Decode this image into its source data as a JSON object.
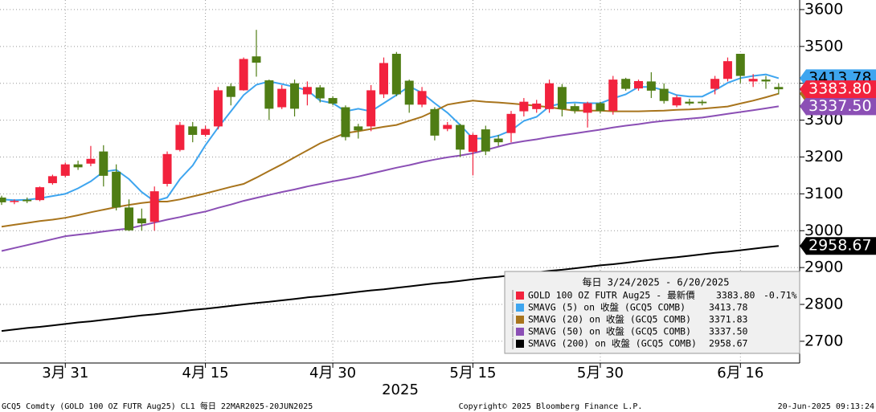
{
  "chart_data": {
    "type": "candlestick",
    "categories": [
      null,
      null,
      null,
      null,
      null,
      "3月 31",
      null,
      null,
      null,
      null,
      null,
      null,
      null,
      null,
      null,
      null,
      "4月 15",
      null,
      null,
      null,
      null,
      null,
      null,
      null,
      null,
      null,
      "4月 30",
      null,
      null,
      null,
      null,
      null,
      null,
      null,
      null,
      null,
      null,
      "5月 15",
      null,
      null,
      null,
      null,
      null,
      null,
      null,
      null,
      null,
      "5月 30",
      null,
      null,
      null,
      null,
      null,
      null,
      null,
      null,
      null,
      null,
      "6月 16",
      null,
      null,
      null
    ],
    "x_label": "2025",
    "name": "GOLD 100 OZ FUTR Aug25 - 最新價",
    "last_label": "3383.80",
    "change_label": "-0.71%",
    "open": [
      3090,
      3079,
      3084,
      3083,
      3129,
      3149,
      3180,
      3182,
      3215,
      3160,
      3063,
      3033,
      3024,
      3127,
      3219,
      3283,
      3260,
      3283,
      3392,
      3381,
      3473,
      3408,
      3335,
      3400,
      3370,
      3389,
      3360,
      3335,
      3283,
      3283,
      3370,
      3480,
      3407,
      3342,
      3330,
      3276,
      3287,
      3214,
      3275,
      3250,
      3265,
      3324,
      3330,
      3330,
      3390,
      3338,
      3320,
      3346,
      3325,
      3412,
      3386,
      3405,
      3385,
      3340,
      3350,
      3350,
      3385,
      3412,
      3480,
      3405,
      3410,
      3390
    ],
    "high": [
      3095,
      3085,
      3090,
      3120,
      3152,
      3185,
      3190,
      3230,
      3232,
      3180,
      3085,
      3060,
      3120,
      3215,
      3295,
      3295,
      3285,
      3390,
      3400,
      3470,
      3545,
      3410,
      3395,
      3410,
      3405,
      3395,
      3365,
      3340,
      3290,
      3395,
      3470,
      3485,
      3410,
      3390,
      3335,
      3295,
      3290,
      3265,
      3285,
      3260,
      3325,
      3360,
      3355,
      3410,
      3398,
      3345,
      3350,
      3350,
      3420,
      3415,
      3410,
      3430,
      3400,
      3368,
      3358,
      3355,
      3420,
      3470,
      3480,
      3425,
      3420,
      3400
    ],
    "low": [
      3070,
      3072,
      3075,
      3080,
      3125,
      3145,
      3165,
      3175,
      3120,
      3055,
      2999,
      3000,
      3000,
      3120,
      3215,
      3240,
      3255,
      3275,
      3340,
      3380,
      3418,
      3300,
      3330,
      3310,
      3340,
      3348,
      3340,
      3245,
      3250,
      3270,
      3360,
      3365,
      3320,
      3335,
      3245,
      3270,
      3200,
      3150,
      3205,
      3230,
      3240,
      3310,
      3320,
      3320,
      3310,
      3318,
      3280,
      3318,
      3315,
      3380,
      3380,
      3360,
      3345,
      3335,
      3340,
      3340,
      3370,
      3405,
      3400,
      3390,
      3385,
      3370
    ],
    "close": [
      3077,
      3081,
      3080,
      3118,
      3148,
      3180,
      3172,
      3195,
      3149,
      3063,
      3001,
      3020,
      3107,
      3208,
      3287,
      3260,
      3276,
      3381,
      3363,
      3466,
      3456,
      3331,
      3385,
      3331,
      3390,
      3359,
      3345,
      3254,
      3272,
      3381,
      3455,
      3370,
      3342,
      3379,
      3258,
      3287,
      3220,
      3260,
      3215,
      3240,
      3317,
      3350,
      3345,
      3400,
      3330,
      3325,
      3346,
      3325,
      3410,
      3385,
      3406,
      3380,
      3352,
      3362,
      3345,
      3346,
      3412,
      3460,
      3420,
      3412,
      3405,
      3383.8
    ],
    "up_color": "#f2223d",
    "down_color": "#4f7d14",
    "series": [
      {
        "name": "SMAVG (5)  on 收盤 (GCQ5 COMB)",
        "color": "#3ea5ef",
        "last_label": "3413.78",
        "values": [
          3085,
          3083,
          3084,
          3088,
          3094,
          3100,
          3115,
          3134,
          3160,
          3165,
          3140,
          3105,
          3080,
          3090,
          3140,
          3177,
          3232,
          3280,
          3324,
          3368,
          3396,
          3405,
          3398,
          3390,
          3381,
          3353,
          3346,
          3324,
          3331,
          3324,
          3346,
          3368,
          3392,
          3374,
          3346,
          3320,
          3287,
          3250,
          3250,
          3258,
          3272,
          3298,
          3309,
          3337,
          3346,
          3348,
          3346,
          3346,
          3359,
          3370,
          3390,
          3390,
          3381,
          3368,
          3364,
          3364,
          3381,
          3401,
          3414,
          3420,
          3424,
          3413.78
        ]
      },
      {
        "name": "SMAVG (20)  on 收盤 (GCQ5 COMB)",
        "color": "#a8741c",
        "last_label": "3371.83",
        "values": [
          3011,
          3016,
          3021,
          3026,
          3030,
          3035,
          3042,
          3050,
          3057,
          3064,
          3070,
          3075,
          3079,
          3079,
          3085,
          3093,
          3101,
          3110,
          3119,
          3127,
          3144,
          3162,
          3180,
          3199,
          3218,
          3237,
          3251,
          3265,
          3270,
          3276,
          3282,
          3287,
          3298,
          3309,
          3325,
          3342,
          3348,
          3353,
          3350,
          3348,
          3345,
          3342,
          3339,
          3335,
          3330,
          3326,
          3326,
          3326,
          3324,
          3324,
          3324,
          3325,
          3326,
          3328,
          3329,
          3331,
          3334,
          3337,
          3345,
          3353,
          3362,
          3371.83
        ]
      },
      {
        "name": "SMAVG (50)  on 收盤 (GCQ5 COMB)",
        "color": "#8b4fb5",
        "last_label": "3337.50",
        "values": [
          2945,
          2953,
          2961,
          2969,
          2977,
          2985,
          2989,
          2993,
          2998,
          3002,
          3006,
          3014,
          3022,
          3030,
          3037,
          3045,
          3052,
          3062,
          3071,
          3081,
          3089,
          3097,
          3105,
          3112,
          3120,
          3127,
          3134,
          3140,
          3147,
          3155,
          3163,
          3171,
          3178,
          3186,
          3193,
          3199,
          3204,
          3210,
          3219,
          3228,
          3237,
          3243,
          3248,
          3254,
          3259,
          3264,
          3269,
          3274,
          3280,
          3285,
          3289,
          3294,
          3298,
          3301,
          3304,
          3307,
          3312,
          3317,
          3322,
          3327,
          3332,
          3337.5
        ]
      },
      {
        "name": "SMAVG (200)  on 收盤 (GCQ5 COMB)",
        "color": "#000000",
        "last_label": "2958.67",
        "values": [
          2728,
          2732,
          2736,
          2739,
          2743,
          2747,
          2751,
          2754,
          2758,
          2762,
          2766,
          2770,
          2773,
          2777,
          2781,
          2785,
          2788,
          2792,
          2796,
          2800,
          2804,
          2807,
          2811,
          2815,
          2819,
          2822,
          2826,
          2830,
          2834,
          2838,
          2841,
          2845,
          2849,
          2853,
          2857,
          2860,
          2864,
          2868,
          2872,
          2875,
          2879,
          2883,
          2887,
          2891,
          2894,
          2898,
          2902,
          2906,
          2909,
          2913,
          2917,
          2921,
          2925,
          2928,
          2932,
          2936,
          2940,
          2943,
          2947,
          2951,
          2955,
          2958.67
        ]
      }
    ],
    "ylim": [
      2641,
      3626
    ],
    "yticks": [
      2700,
      2800,
      2900,
      3000,
      3100,
      3200,
      3300,
      3400,
      3500,
      3600
    ],
    "grid": true,
    "legend_title": "每日 3/24/2025 - 6/20/2025",
    "legend": "bottom-right"
  },
  "footer": {
    "left": "GCQ5 Comdty (GOLD 100 OZ FUTR  Aug25) CL1  每日 22MAR2025-20JUN2025",
    "center": "Copyright© 2025 Bloomberg Finance L.P.",
    "right": "20-Jun-2025 09:13:24"
  }
}
